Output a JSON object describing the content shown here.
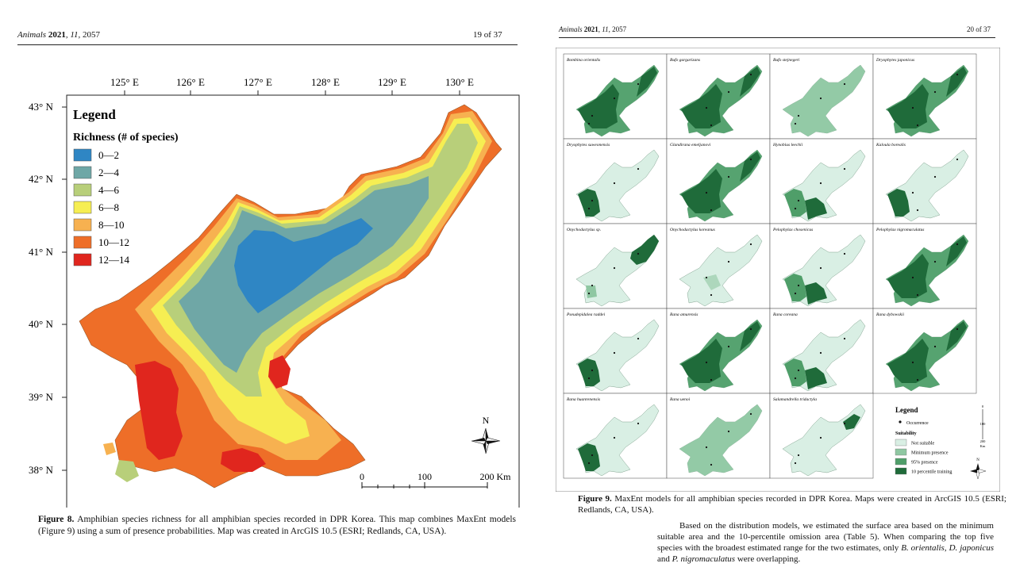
{
  "left_page": {
    "journal": "Animals",
    "year": "2021",
    "volume": "11",
    "article": "2057",
    "page_label": "19 of 37",
    "figure": {
      "longitudes": [
        "125° E",
        "126° E",
        "127° E",
        "128° E",
        "129° E",
        "130° E"
      ],
      "latitudes": [
        "43° N",
        "42° N",
        "41° N",
        "40° N",
        "39° N",
        "38° N"
      ],
      "legend_title": "Legend",
      "legend_subtitle": "Richness (# of species)",
      "legend_items": [
        {
          "label": "0—2",
          "color": "#2f86c4"
        },
        {
          "label": "2—4",
          "color": "#6fa7a6"
        },
        {
          "label": "4—6",
          "color": "#b8cf7a"
        },
        {
          "label": "6—8",
          "color": "#f6ee52"
        },
        {
          "label": "8—10",
          "color": "#f7b150"
        },
        {
          "label": "10—12",
          "color": "#ee6e28"
        },
        {
          "label": "12—14",
          "color": "#e0261e"
        }
      ],
      "north_label": "N",
      "scale_labels": [
        "0",
        "100",
        "200 Km"
      ]
    },
    "caption_label": "Figure 8.",
    "caption_text": "Amphibian species richness for all amphibian species recorded in DPR Korea. This map combines MaxEnt models (Figure 9) using a sum of presence probabilities. Map was created in ArcGIS 10.5 (ESRI; Redlands, CA, USA)."
  },
  "right_page": {
    "journal": "Animals",
    "year": "2021",
    "volume": "11",
    "article": "2057",
    "page_label": "20 of 37",
    "species_panels": [
      {
        "name": "Bombina orientalis",
        "shade": "dark"
      },
      {
        "name": "Bufo gargarizans",
        "shade": "dark"
      },
      {
        "name": "Bufo stejnegeri",
        "shade": "light"
      },
      {
        "name": "Dryophytes japonicus",
        "shade": "dark"
      },
      {
        "name": "Dryophytes suweonensis",
        "shade": "west"
      },
      {
        "name": "Glandirana emeljanovi",
        "shade": "dark"
      },
      {
        "name": "Hynobius leechii",
        "shade": "southwest"
      },
      {
        "name": "Kaloula borealis",
        "shade": "west"
      },
      {
        "name": "Onychodactylus sp.",
        "shade": "northeast"
      },
      {
        "name": "Onychodactylus koreanus",
        "shade": "pale"
      },
      {
        "name": "Pelophylax chosenicus",
        "shade": "southwest"
      },
      {
        "name": "Pelophylax nigromaculatus",
        "shade": "dark"
      },
      {
        "name": "Pseudepidalea raddei",
        "shade": "west"
      },
      {
        "name": "Rana amurensis",
        "shade": "dark"
      },
      {
        "name": "Rana coreana",
        "shade": "southwest"
      },
      {
        "name": "Rana dybowskii",
        "shade": "dark"
      },
      {
        "name": "Rana huanrenensis",
        "shade": "west"
      },
      {
        "name": "Rana uenoi",
        "shade": "light"
      },
      {
        "name": "Salamandrella tridactyla",
        "shade": "spot"
      }
    ],
    "legend": {
      "title": "Legend",
      "occurrence": "Occurrence",
      "suitability": "Suitability",
      "classes": [
        {
          "label": "Not suitable",
          "color": "#d9efe4"
        },
        {
          "label": "Minimum presence",
          "color": "#8fc7a2"
        },
        {
          "label": "95% presence",
          "color": "#4f9e69"
        },
        {
          "label": "10 percentile training",
          "color": "#1f6b3a"
        }
      ],
      "scale_labels": [
        "0",
        "100",
        "200"
      ],
      "scale_unit": "Km",
      "north_label": "N"
    },
    "caption_label": "Figure 9.",
    "caption_text": "MaxEnt models for all amphibian species recorded in DPR Korea. Maps were created in ArcGIS 10.5 (ESRI; Redlands, CA, USA).",
    "paragraph_1": "Based on the distribution models, we estimated the surface area based on the minimum suitable area and the 10-percentile omission area (Table 5). When comparing the top five species with the broadest estimated range for the two estimates, only ",
    "species_1": "B. orientalis",
    "sep_1": ", ",
    "species_2": "D. japonicus",
    "sep_2": " and ",
    "species_3": "P. nigromaculatus",
    "paragraph_end": " were overlapping."
  }
}
